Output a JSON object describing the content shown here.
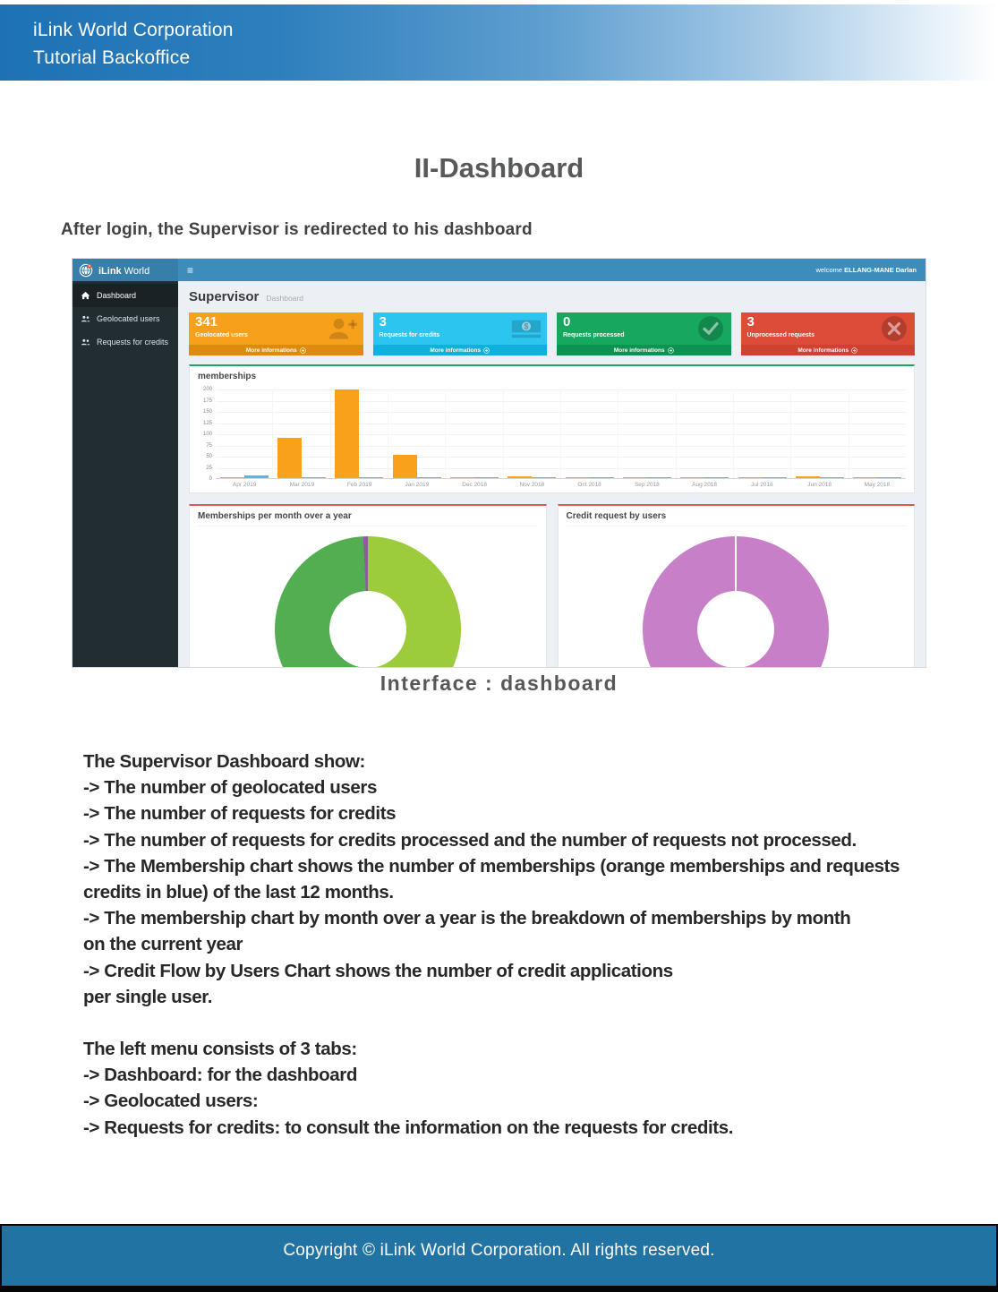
{
  "doc": {
    "header": {
      "line1": "iLink World Corporation",
      "line2": "Tutorial Backoffice"
    },
    "title": "II-Dashboard",
    "intro": "After login, the Supervisor is redirected to his dashboard",
    "caption": "Interface : dashboard",
    "paragraphs": [
      [
        "The Supervisor Dashboard show:",
        "-> The number of geolocated users",
        "-> The number of requests for credits",
        "-> The number of requests for credits processed and the number of requests not processed.",
        "-> The Membership chart shows the number of memberships (orange memberships and requests",
        "credits in blue) of the last 12 months.",
        "-> The membership chart by month over a year is the breakdown of memberships by month",
        "on the current year",
        "-> Credit Flow by Users Chart shows the number of credit applications",
        "per single user."
      ],
      [
        "The left menu consists of 3 tabs:",
        "-> Dashboard: for the dashboard",
        "-> Geolocated users:",
        "-> Requests for credits: to consult the information on the requests for credits."
      ]
    ],
    "footer": "Copyright © iLink World Corporation. All rights reserved."
  },
  "app": {
    "brand_bold": "iLink",
    "brand_light": "World",
    "menu_glyph": "≡",
    "welcome_prefix": "welcome",
    "welcome_name": "ELLANG-MANE Darlan",
    "page_heading": "Supervisor",
    "breadcrumb": "Dashboard",
    "more_label": "More informations",
    "sidebar": [
      {
        "label": "Dashboard",
        "icon": "home-icon",
        "active": true
      },
      {
        "label": "Geolocated users",
        "icon": "users-icon",
        "active": false
      },
      {
        "label": "Requests for credits",
        "icon": "users-icon",
        "active": false
      }
    ],
    "cards": [
      {
        "value": "341",
        "label": "Geolocated users",
        "color": "#f7a01c",
        "footer_color": "#dd8b0e",
        "icon": "user-plus-icon"
      },
      {
        "value": "3",
        "label": "Requests for credits",
        "color": "#2cc5f0",
        "footer_color": "#0fb0dc",
        "icon": "money-icon"
      },
      {
        "value": "0",
        "label": "Requests processed",
        "color": "#18a75e",
        "footer_color": "#0d9350",
        "icon": "check-circle-icon"
      },
      {
        "value": "3",
        "label": "Unprocessed requests",
        "color": "#dd4b39",
        "footer_color": "#cf4231",
        "icon": "x-circle-icon"
      }
    ]
  },
  "chart_data": [
    {
      "type": "bar",
      "title": "memberships",
      "categories": [
        "Apr 2019",
        "Mar 2019",
        "Feb 2019",
        "Jan 2019",
        "Dec 2018",
        "Nov 2018",
        "Oct 2018",
        "Sep 2018",
        "Aug 2018",
        "Jul 2018",
        "Jun 2018",
        "May 2018"
      ],
      "series": [
        {
          "name": "memberships",
          "color": "#f9a11b",
          "values": [
            2,
            90,
            198,
            52,
            2,
            4,
            2,
            2,
            2,
            2,
            3,
            2
          ]
        },
        {
          "name": "requests credits",
          "color": "#55b6ec",
          "values": [
            5,
            2,
            2,
            2,
            2,
            2,
            2,
            2,
            2,
            2,
            2,
            2
          ]
        }
      ],
      "xlabel": "",
      "ylabel": "",
      "ylim": [
        0,
        200
      ],
      "yticks": [
        200,
        175,
        150,
        125,
        100,
        75,
        50,
        25,
        0
      ],
      "grid": true,
      "legend": false,
      "accent_border_color": "#18a75b"
    },
    {
      "type": "pie",
      "title": "Memberships per month over a year",
      "donut": true,
      "slices": [
        {
          "value": 51.5,
          "color": "#9ccb3c"
        },
        {
          "value": 47.7,
          "color": "#53ae52"
        },
        {
          "value": 0.8,
          "color": "#9457a3"
        }
      ],
      "legend": false,
      "accent_border_color": "#e2574c"
    },
    {
      "type": "pie",
      "title": "Credit request by users",
      "donut": true,
      "slices": [
        {
          "value": 100,
          "color": "#c77fc8"
        }
      ],
      "legend": false,
      "accent_border_color": "#e2574c"
    }
  ]
}
